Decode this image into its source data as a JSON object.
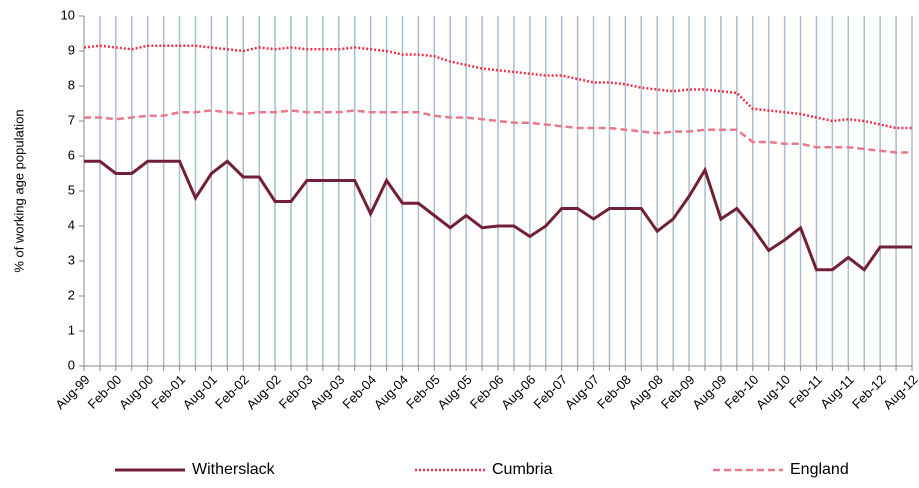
{
  "chart_data": {
    "type": "line",
    "ylabel": "% of working age population",
    "categories": [
      "Aug-99",
      null,
      "Feb-00",
      null,
      "Aug-00",
      null,
      "Feb-01",
      null,
      "Aug-01",
      null,
      "Feb-02",
      null,
      "Aug-02",
      null,
      "Feb-03",
      null,
      "Aug-03",
      null,
      "Feb-04",
      null,
      "Aug-04",
      null,
      "Feb-05",
      null,
      "Aug-05",
      null,
      "Feb-06",
      null,
      "Aug-06",
      null,
      "Feb-07",
      null,
      "Aug-07",
      null,
      "Feb-08",
      null,
      "Aug-08",
      null,
      "Feb-09",
      null,
      "Aug-09",
      null,
      "Feb-10",
      null,
      "Aug-10",
      null,
      "Feb-11",
      null,
      "Aug-11",
      null,
      "Feb-12",
      null,
      "Aug-12"
    ],
    "series": [
      {
        "name": "Witherslack",
        "color": "#722038",
        "dash": "solid",
        "values": [
          5.85,
          5.85,
          5.5,
          5.5,
          5.85,
          5.85,
          5.85,
          4.8,
          5.5,
          5.85,
          5.4,
          5.4,
          4.7,
          4.7,
          5.3,
          5.3,
          5.3,
          5.3,
          4.35,
          5.3,
          4.65,
          4.65,
          4.3,
          3.95,
          4.3,
          3.95,
          4.0,
          4.0,
          3.7,
          4.0,
          4.5,
          4.5,
          4.2,
          4.5,
          4.5,
          4.5,
          3.85,
          4.2,
          4.85,
          5.6,
          4.2,
          4.5,
          3.95,
          3.3,
          3.6,
          3.95,
          2.75,
          2.75,
          3.1,
          2.75,
          3.4,
          3.4,
          3.4
        ]
      },
      {
        "name": "Cumbria",
        "color": "#e8344a",
        "dash": "dotted",
        "values": [
          9.1,
          9.15,
          9.1,
          9.05,
          9.15,
          9.15,
          9.15,
          9.15,
          9.1,
          9.05,
          9.0,
          9.1,
          9.05,
          9.1,
          9.05,
          9.05,
          9.05,
          9.1,
          9.05,
          9.0,
          8.9,
          8.9,
          8.85,
          8.7,
          8.6,
          8.5,
          8.45,
          8.4,
          8.35,
          8.3,
          8.3,
          8.2,
          8.1,
          8.1,
          8.05,
          7.95,
          7.9,
          7.85,
          7.9,
          7.9,
          7.85,
          7.8,
          7.35,
          7.3,
          7.25,
          7.2,
          7.1,
          7.0,
          7.05,
          7.0,
          6.9,
          6.8,
          6.8
        ]
      },
      {
        "name": "England",
        "color": "#e8788a",
        "dash": "dashed",
        "values": [
          7.1,
          7.1,
          7.05,
          7.1,
          7.15,
          7.15,
          7.25,
          7.25,
          7.3,
          7.25,
          7.2,
          7.25,
          7.25,
          7.3,
          7.25,
          7.25,
          7.25,
          7.3,
          7.25,
          7.25,
          7.25,
          7.25,
          7.15,
          7.1,
          7.1,
          7.05,
          7.0,
          6.95,
          6.95,
          6.9,
          6.85,
          6.8,
          6.8,
          6.8,
          6.75,
          6.7,
          6.65,
          6.7,
          6.7,
          6.75,
          6.75,
          6.75,
          6.4,
          6.4,
          6.35,
          6.35,
          6.25,
          6.25,
          6.25,
          6.2,
          6.15,
          6.1,
          6.1
        ]
      }
    ],
    "ylim": [
      0,
      10
    ],
    "yticks": [
      0,
      1,
      2,
      3,
      4,
      5,
      6,
      7,
      8,
      9,
      10
    ],
    "xgrid": true,
    "grid_color": "#a9bdd4",
    "legend": "bottom"
  }
}
